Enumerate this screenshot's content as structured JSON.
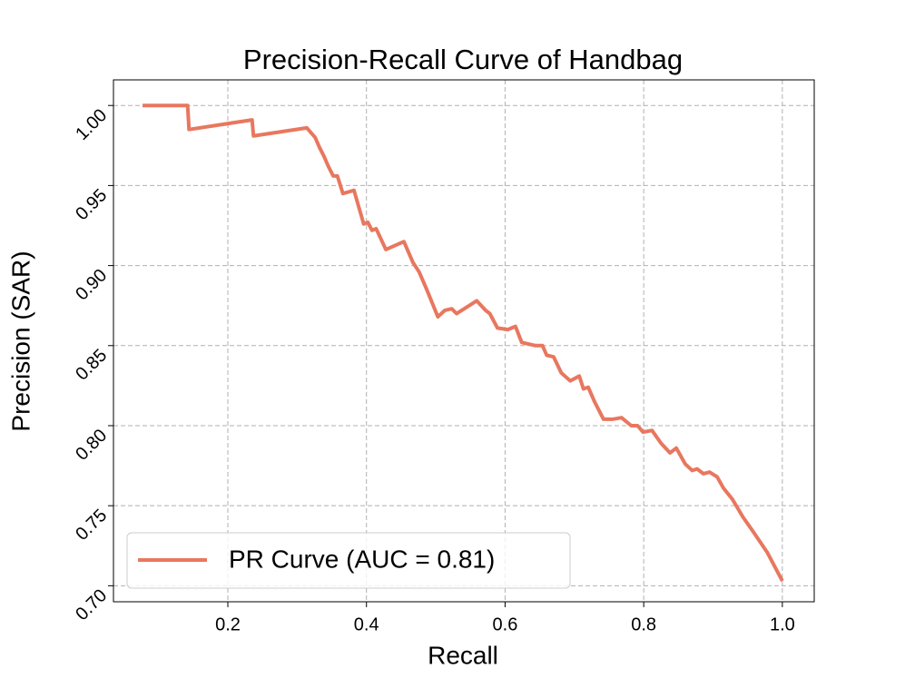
{
  "chart_data": {
    "type": "line",
    "title": "Precision-Recall Curve of Handbag",
    "x_label": "Recall",
    "y_label": "Precision (SAR)",
    "x": [
      0.077,
      0.142,
      0.144,
      0.235,
      0.237,
      0.314,
      0.326,
      0.332,
      0.339,
      0.345,
      0.352,
      0.358,
      0.366,
      0.382,
      0.39,
      0.396,
      0.402,
      0.408,
      0.414,
      0.428,
      0.454,
      0.467,
      0.476,
      0.487,
      0.503,
      0.513,
      0.523,
      0.53,
      0.559,
      0.572,
      0.578,
      0.589,
      0.604,
      0.615,
      0.624,
      0.644,
      0.654,
      0.66,
      0.67,
      0.681,
      0.694,
      0.707,
      0.713,
      0.72,
      0.729,
      0.742,
      0.755,
      0.768,
      0.782,
      0.791,
      0.799,
      0.812,
      0.825,
      0.838,
      0.847,
      0.86,
      0.87,
      0.877,
      0.886,
      0.895,
      0.906,
      0.915,
      0.928,
      0.943,
      0.956,
      0.978,
      1.0
    ],
    "series": [
      {
        "name": "PR Curve (AUC = 0.81)",
        "color": "#e8775f",
        "values": [
          1.0,
          1.0,
          0.985,
          0.991,
          0.981,
          0.986,
          0.98,
          0.974,
          0.968,
          0.962,
          0.956,
          0.956,
          0.945,
          0.947,
          0.935,
          0.926,
          0.927,
          0.922,
          0.923,
          0.91,
          0.915,
          0.902,
          0.896,
          0.885,
          0.868,
          0.872,
          0.873,
          0.87,
          0.878,
          0.872,
          0.87,
          0.861,
          0.86,
          0.862,
          0.852,
          0.85,
          0.85,
          0.844,
          0.843,
          0.833,
          0.828,
          0.831,
          0.823,
          0.824,
          0.815,
          0.804,
          0.804,
          0.805,
          0.8,
          0.8,
          0.796,
          0.797,
          0.789,
          0.783,
          0.786,
          0.776,
          0.772,
          0.773,
          0.77,
          0.771,
          0.768,
          0.761,
          0.754,
          0.743,
          0.735,
          0.721,
          0.703
        ]
      }
    ],
    "xlim": [
      0.035,
      1.046
    ],
    "ylim": [
      0.69,
      1.016
    ],
    "xticks": [
      0.2,
      0.4,
      0.6,
      0.8,
      {
        "value": 1.0,
        "label": "1.0"
      }
    ],
    "yticks": [
      {
        "value": 0.7,
        "label": "0.70"
      },
      {
        "value": 0.75,
        "label": "0.75"
      },
      {
        "value": 0.8,
        "label": "0.80"
      },
      {
        "value": 0.85,
        "label": "0.85"
      },
      {
        "value": 0.9,
        "label": "0.90"
      },
      {
        "value": 0.95,
        "label": "0.95"
      },
      {
        "value": 1.0,
        "label": "1.00"
      }
    ],
    "grid": true,
    "legend": "lower left"
  }
}
